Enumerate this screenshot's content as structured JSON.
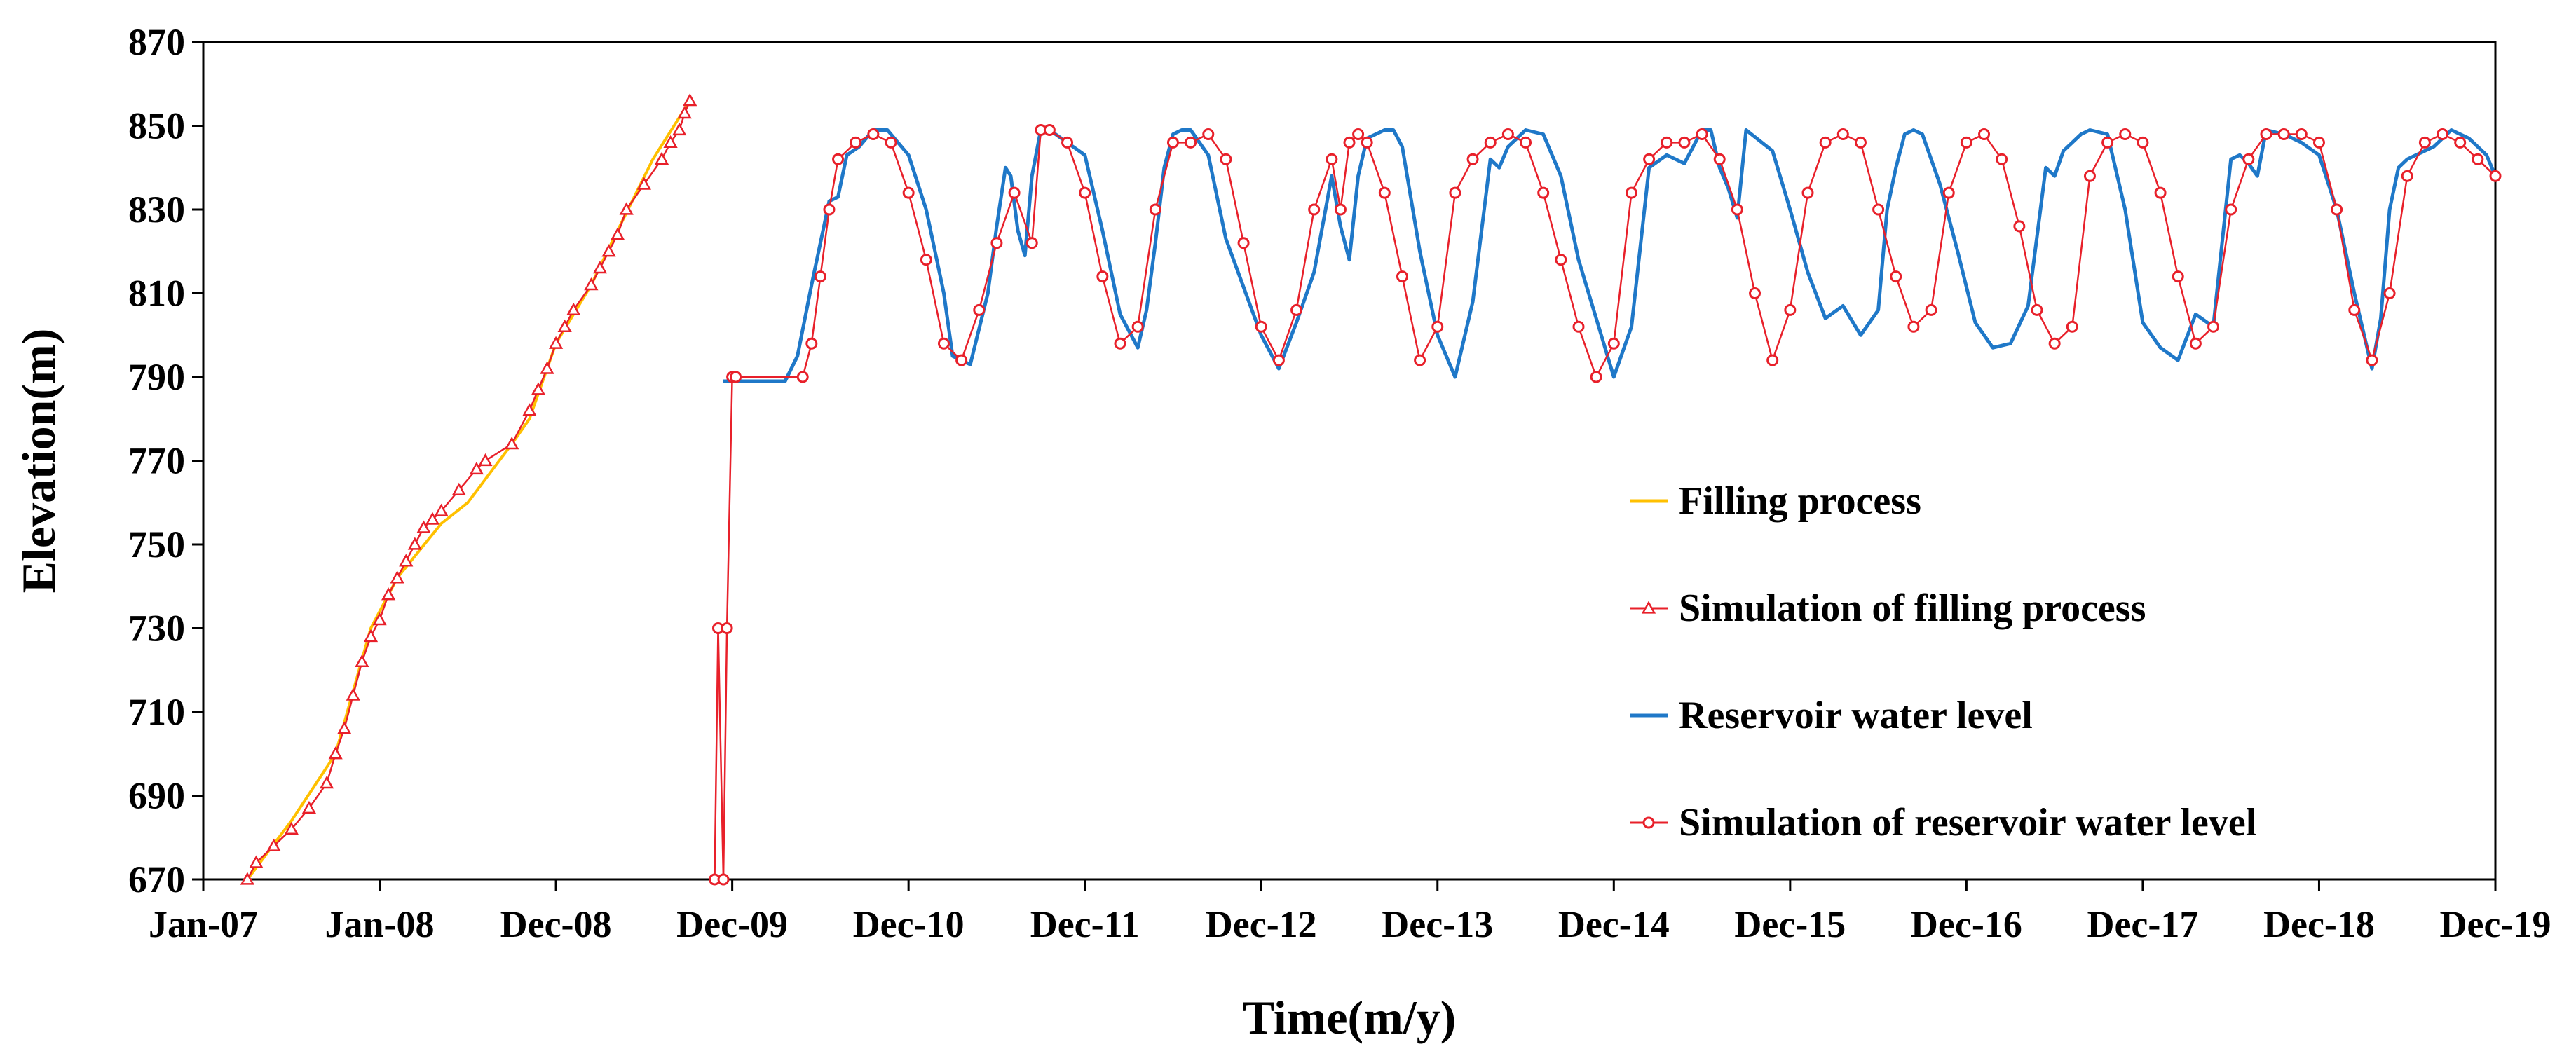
{
  "chart_data": {
    "type": "line",
    "title": "",
    "xlabel": "Time(m/y)",
    "ylabel": "Elevation(m)",
    "ylim": [
      670,
      870
    ],
    "yticks": [
      670,
      690,
      710,
      730,
      750,
      770,
      790,
      810,
      830,
      850,
      870
    ],
    "xlim": [
      2007.0,
      2020.0
    ],
    "x_unit": "decimal year",
    "xtick_labels": [
      "Jan-07",
      "Jan-08",
      "Dec-08",
      "Dec-09",
      "Dec-10",
      "Dec-11",
      "Dec-12",
      "Dec-13",
      "Dec-14",
      "Dec-15",
      "Dec-16",
      "Dec-17",
      "Dec-18",
      "Dec-19"
    ],
    "xtick_positions": [
      2007.0,
      2008.0,
      2009.0,
      2010.0,
      2011.0,
      2012.0,
      2013.0,
      2014.0,
      2015.0,
      2016.0,
      2017.0,
      2018.0,
      2019.0,
      2020.0
    ],
    "grid": false,
    "legend": {
      "position": "center-right",
      "entries": [
        "Filling process",
        "Simulation of filling process",
        "Reservoir water level",
        "Simulation of reservoir water level"
      ]
    },
    "series": [
      {
        "name": "Filling process",
        "color": "#FFC000",
        "marker": "none",
        "x": [
          2007.25,
          2007.5,
          2007.75,
          2007.95,
          2008.1,
          2008.35,
          2008.5,
          2008.75,
          2008.85,
          2009.0,
          2009.2,
          2009.35,
          2009.55,
          2009.76
        ],
        "y": [
          670,
          684,
          700,
          730,
          742,
          755,
          760,
          774,
          780,
          798,
          812,
          825,
          842,
          856
        ]
      },
      {
        "name": "Simulation of filling process",
        "color": "#E8202A",
        "marker": "triangle",
        "x": [
          2007.25,
          2007.3,
          2007.4,
          2007.5,
          2007.6,
          2007.7,
          2007.75,
          2007.8,
          2007.85,
          2007.9,
          2007.95,
          2008.0,
          2008.05,
          2008.1,
          2008.15,
          2008.2,
          2008.25,
          2008.3,
          2008.35,
          2008.45,
          2008.55,
          2008.6,
          2008.75,
          2008.85,
          2008.9,
          2008.95,
          2009.0,
          2009.05,
          2009.1,
          2009.2,
          2009.25,
          2009.3,
          2009.35,
          2009.4,
          2009.5,
          2009.6,
          2009.65,
          2009.7,
          2009.73,
          2009.76
        ],
        "y": [
          670,
          674,
          678,
          682,
          687,
          693,
          700,
          706,
          714,
          722,
          728,
          732,
          738,
          742,
          746,
          750,
          754,
          756,
          758,
          763,
          768,
          770,
          774,
          782,
          787,
          792,
          798,
          802,
          806,
          812,
          816,
          820,
          824,
          830,
          836,
          842,
          846,
          849,
          853,
          856
        ]
      },
      {
        "name": "Reservoir water level",
        "color": "#1F78C8",
        "marker": "none",
        "x": [
          2009.95,
          2010.1,
          2010.2,
          2010.3,
          2010.37,
          2010.45,
          2010.55,
          2010.6,
          2010.65,
          2010.72,
          2010.8,
          2010.88,
          2011.0,
          2011.1,
          2011.2,
          2011.25,
          2011.35,
          2011.45,
          2011.5,
          2011.55,
          2011.58,
          2011.62,
          2011.66,
          2011.7,
          2011.75,
          2011.8,
          2012.0,
          2012.1,
          2012.2,
          2012.3,
          2012.35,
          2012.4,
          2012.45,
          2012.5,
          2012.55,
          2012.6,
          2012.7,
          2012.8,
          2013.0,
          2013.1,
          2013.2,
          2013.3,
          2013.4,
          2013.45,
          2013.5,
          2013.55,
          2013.6,
          2013.65,
          2013.7,
          2013.75,
          2013.8,
          2013.9,
          2014.0,
          2014.1,
          2014.2,
          2014.3,
          2014.35,
          2014.4,
          2014.45,
          2014.5,
          2014.6,
          2014.7,
          2014.8,
          2014.9,
          2015.0,
          2015.1,
          2015.2,
          2015.3,
          2015.4,
          2015.45,
          2015.5,
          2015.55,
          2015.6,
          2015.65,
          2015.7,
          2015.75,
          2015.9,
          2016.0,
          2016.1,
          2016.2,
          2016.3,
          2016.4,
          2016.5,
          2016.55,
          2016.6,
          2016.65,
          2016.7,
          2016.75,
          2016.85,
          2016.95,
          2017.05,
          2017.15,
          2017.25,
          2017.35,
          2017.45,
          2017.5,
          2017.55,
          2017.6,
          2017.65,
          2017.7,
          2017.8,
          2017.9,
          2018.0,
          2018.1,
          2018.2,
          2018.3,
          2018.4,
          2018.5,
          2018.55,
          2018.6,
          2018.65,
          2018.7,
          2018.8,
          2018.9,
          2019.0,
          2019.1,
          2019.2,
          2019.3,
          2019.35,
          2019.4,
          2019.45,
          2019.5,
          2019.55,
          2019.65,
          2019.75,
          2019.85,
          2019.95,
          2020.0
        ],
        "y": [
          789,
          789,
          789,
          789,
          795,
          812,
          832,
          833,
          843,
          845,
          849,
          849,
          843,
          830,
          810,
          795,
          793,
          810,
          826,
          840,
          838,
          825,
          819,
          838,
          849,
          849,
          843,
          825,
          805,
          797,
          806,
          822,
          840,
          848,
          849,
          849,
          843,
          823,
          800,
          792,
          803,
          815,
          838,
          826,
          818,
          838,
          847,
          848,
          849,
          849,
          845,
          820,
          800,
          790,
          808,
          842,
          840,
          845,
          847,
          849,
          848,
          838,
          818,
          804,
          790,
          802,
          840,
          843,
          841,
          845,
          849,
          849,
          840,
          835,
          828,
          849,
          844,
          830,
          815,
          804,
          807,
          800,
          806,
          830,
          840,
          848,
          849,
          848,
          836,
          820,
          803,
          797,
          798,
          807,
          840,
          838,
          844,
          846,
          848,
          849,
          848,
          830,
          803,
          797,
          794,
          805,
          802,
          842,
          843,
          841,
          838,
          849,
          848,
          846,
          843,
          830,
          810,
          792,
          804,
          830,
          840,
          842,
          843,
          845,
          849,
          847,
          843,
          838
        ],
        "annotation": "approximate trace: rises from ~790 to ~849 each year then falls back to ~790-800"
      },
      {
        "name": "Simulation of reservoir water level",
        "color": "#E8202A",
        "marker": "circle",
        "x": [
          2009.9,
          2009.92,
          2009.95,
          2009.97,
          2010.0,
          2010.02,
          2010.4,
          2010.45,
          2010.5,
          2010.55,
          2010.6,
          2010.7,
          2010.8,
          2010.9,
          2011.0,
          2011.1,
          2011.2,
          2011.3,
          2011.4,
          2011.5,
          2011.6,
          2011.7,
          2011.75,
          2011.8,
          2011.9,
          2012.0,
          2012.1,
          2012.2,
          2012.3,
          2012.4,
          2012.5,
          2012.6,
          2012.7,
          2012.8,
          2012.9,
          2013.0,
          2013.1,
          2013.2,
          2013.3,
          2013.4,
          2013.45,
          2013.5,
          2013.55,
          2013.6,
          2013.7,
          2013.8,
          2013.9,
          2014.0,
          2014.1,
          2014.2,
          2014.3,
          2014.4,
          2014.5,
          2014.6,
          2014.7,
          2014.8,
          2014.9,
          2015.0,
          2015.1,
          2015.2,
          2015.3,
          2015.4,
          2015.5,
          2015.6,
          2015.7,
          2015.8,
          2015.9,
          2016.0,
          2016.1,
          2016.2,
          2016.3,
          2016.4,
          2016.5,
          2016.6,
          2016.7,
          2016.8,
          2016.9,
          2017.0,
          2017.1,
          2017.2,
          2017.3,
          2017.4,
          2017.5,
          2017.6,
          2017.7,
          2017.8,
          2017.9,
          2018.0,
          2018.1,
          2018.2,
          2018.3,
          2018.4,
          2018.5,
          2018.6,
          2018.7,
          2018.8,
          2018.9,
          2019.0,
          2019.1,
          2019.2,
          2019.3,
          2019.4,
          2019.5,
          2019.6,
          2019.7,
          2019.8,
          2019.9,
          2020.0
        ],
        "y": [
          670,
          730,
          670,
          730,
          790,
          790,
          790,
          798,
          814,
          830,
          842,
          846,
          848,
          846,
          834,
          818,
          798,
          794,
          806,
          822,
          834,
          822,
          849,
          849,
          846,
          834,
          814,
          798,
          802,
          830,
          846,
          846,
          848,
          842,
          822,
          802,
          794,
          806,
          830,
          842,
          830,
          846,
          848,
          846,
          834,
          814,
          794,
          802,
          834,
          842,
          846,
          848,
          846,
          834,
          818,
          802,
          790,
          798,
          834,
          842,
          846,
          846,
          848,
          842,
          830,
          810,
          794,
          806,
          834,
          846,
          848,
          846,
          830,
          814,
          802,
          806,
          834,
          846,
          848,
          842,
          826,
          806,
          798,
          802,
          838,
          846,
          848,
          846,
          834,
          814,
          798,
          802,
          830,
          842,
          848,
          848,
          848,
          846,
          830,
          806,
          794,
          810,
          838,
          846,
          848,
          846,
          842,
          838
        ]
      }
    ]
  }
}
